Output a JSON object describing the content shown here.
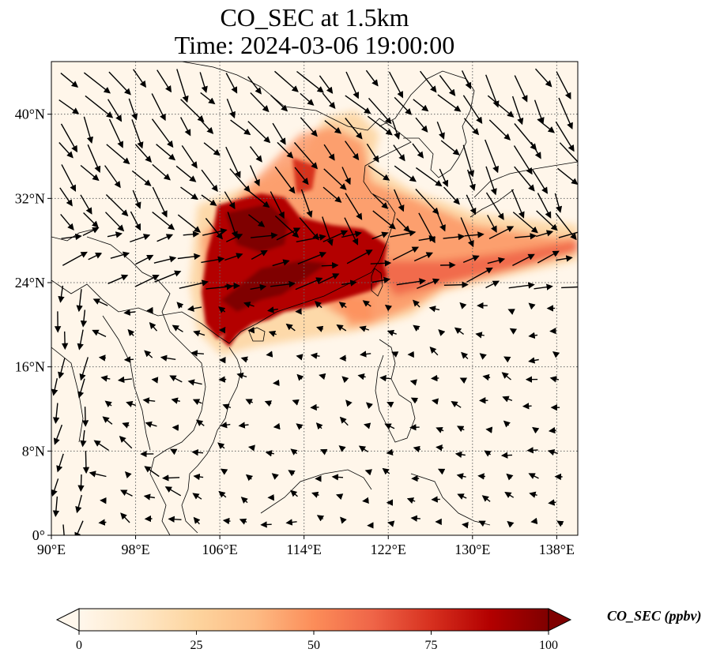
{
  "title": {
    "line1": "CO_SEC at 1.5km",
    "line2": "Time: 2024-03-06 19:00:00"
  },
  "map": {
    "projection": "PlateCarree",
    "lon_range": [
      90,
      140
    ],
    "lat_range": [
      0,
      45
    ],
    "gridlines": "dotted",
    "lon_ticks": [
      "90°E",
      "98°E",
      "106°E",
      "114°E",
      "122°E",
      "130°E",
      "138°E"
    ],
    "lat_ticks": [
      "0°",
      "8°N",
      "16°N",
      "24°N",
      "32°N",
      "40°N"
    ],
    "lon_tick_values": [
      90,
      98,
      106,
      114,
      122,
      130,
      138
    ],
    "lat_tick_values": [
      0,
      8,
      16,
      24,
      32,
      40
    ],
    "field": "CO_SEC",
    "overlay": "wind vectors (arrows)"
  },
  "colorbar": {
    "label": "CO_SEC (ppbv)",
    "ticks": [
      "0",
      "25",
      "50",
      "75",
      "100"
    ],
    "tick_values": [
      0,
      25,
      50,
      75,
      100
    ],
    "range": [
      0,
      100
    ],
    "colormap": "OrRd",
    "extend": "both",
    "colors": [
      "#fff7ec",
      "#fee8c8",
      "#fdd49e",
      "#fdbb84",
      "#fc8d59",
      "#ef6548",
      "#d7301f",
      "#b30000",
      "#7f0000"
    ]
  }
}
